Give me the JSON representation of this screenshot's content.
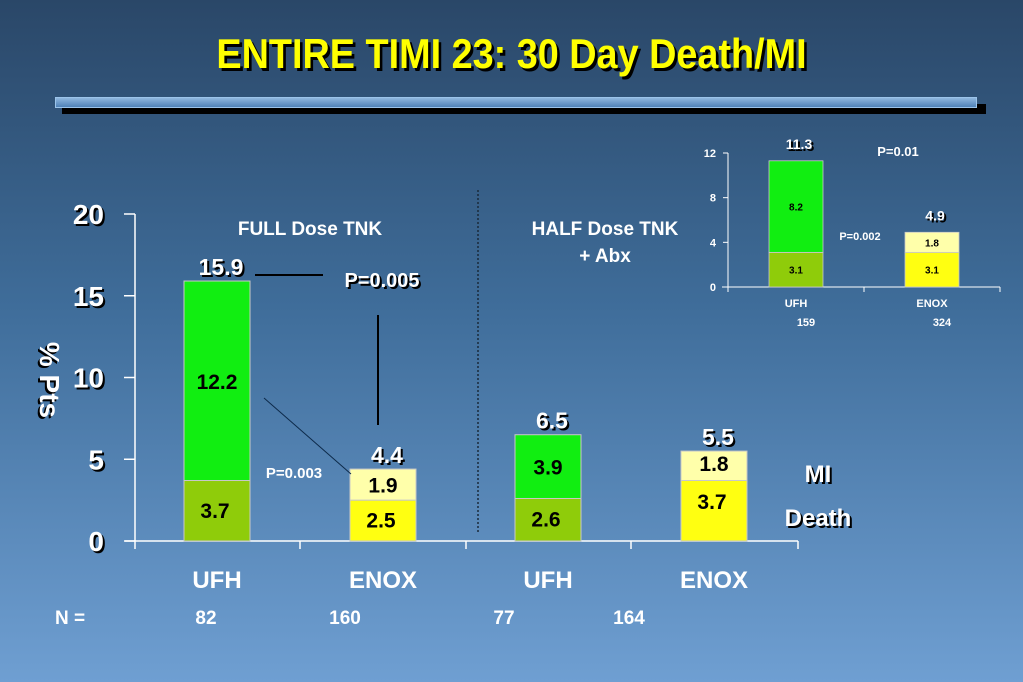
{
  "title": "ENTIRE TIMI 23: 30 Day Death/MI",
  "colors": {
    "mi": "#11ee11",
    "death_ufh": "#8fcc0a",
    "death_enox": "#ffff11",
    "mi_enox": "#ffffaa",
    "title": "#ffff00"
  },
  "chart_data": [
    {
      "type": "bar",
      "stacked": true,
      "ylabel": "% Pts",
      "ylim": [
        0,
        20
      ],
      "yticks": [
        "0",
        "5",
        "10",
        "15",
        "20"
      ],
      "categories": [
        "UFH",
        "ENOX",
        "UFH",
        "ENOX"
      ],
      "series": [
        {
          "name": "Death",
          "values": [
            3.7,
            2.5,
            2.6,
            3.7
          ],
          "labels": [
            "3.7",
            "2.5",
            "2.6",
            "3.7"
          ]
        },
        {
          "name": "MI",
          "values": [
            12.2,
            1.9,
            3.9,
            1.8
          ],
          "labels": [
            "12.2",
            "1.9",
            "3.9",
            "1.8"
          ]
        }
      ],
      "totals": [
        "15.9",
        "4.4",
        "6.5",
        "5.5"
      ],
      "group_labels": [
        "FULL Dose TNK",
        "HALF Dose TNK",
        "+ Abx"
      ],
      "n_label": "N =",
      "n_values": [
        "82",
        "160",
        "77",
        "164"
      ],
      "annotations": [
        "P=0.005",
        "P=0.003"
      ],
      "legend": [
        "MI",
        "Death"
      ]
    },
    {
      "type": "bar",
      "stacked": true,
      "ylim": [
        0,
        12
      ],
      "yticks": [
        "0",
        "4",
        "8",
        "12"
      ],
      "categories": [
        "UFH",
        "ENOX"
      ],
      "series": [
        {
          "name": "Death",
          "values": [
            3.1,
            3.1
          ],
          "labels": [
            "3.1",
            "3.1"
          ]
        },
        {
          "name": "MI",
          "values": [
            8.2,
            1.8
          ],
          "labels": [
            "8.2",
            "1.8"
          ]
        }
      ],
      "totals": [
        "11.3",
        "4.9"
      ],
      "n_values": [
        "159",
        "324"
      ],
      "annotations": [
        "P=0.01",
        "P=0.002"
      ]
    }
  ]
}
